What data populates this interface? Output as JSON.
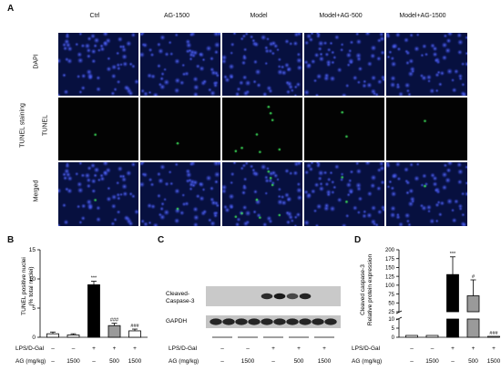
{
  "panelA": {
    "letter": "A",
    "columns": [
      "Ctrl",
      "AG-1500",
      "Model",
      "Model+AG-500",
      "Model+AG-1500"
    ],
    "rows": [
      "DAPI",
      "TUNEL",
      "Merged"
    ],
    "group_label": "TUNEL staining",
    "tunel_spots": [
      1,
      1,
      8,
      2,
      1
    ]
  },
  "panelB": {
    "letter": "B",
    "ylabel_line1": "TUNEL positive nuclei",
    "ylabel_line2": "(% total nuclei)",
    "chart_data": {
      "type": "bar",
      "categories": [
        "Ctrl",
        "AG-1500",
        "Model",
        "Model+AG-500",
        "Model+AG-1500"
      ],
      "values": [
        0.6,
        0.4,
        9.0,
        2.0,
        1.1
      ],
      "errors": [
        0.3,
        0.2,
        0.6,
        0.4,
        0.3
      ],
      "fills": [
        "#ffffff",
        "#ffffff",
        "#000000",
        "#9a9a9a",
        "#ffffff"
      ],
      "significance": [
        "",
        "",
        "***",
        "###",
        "###"
      ],
      "ylim": [
        0,
        15
      ],
      "yticks": [
        0,
        5,
        10,
        15
      ]
    }
  },
  "panelC": {
    "letter": "C",
    "blot1_label_line1": "Cleaved-",
    "blot1_label_line2": "Caspase-3",
    "blot2_label": "GAPDH"
  },
  "panelD": {
    "letter": "D",
    "ylabel_line1": "Cleaved caspase-3",
    "ylabel_line2": "Relative protein expression",
    "chart_data": {
      "type": "bar",
      "categories": [
        "Ctrl",
        "AG-1500",
        "Model",
        "Model+AG-500",
        "Model+AG-1500"
      ],
      "values": [
        1.0,
        1.0,
        130,
        70,
        0.5
      ],
      "errors": [
        0.2,
        0.2,
        50,
        45,
        0.2
      ],
      "fills": [
        "#ffffff",
        "#ffffff",
        "#000000",
        "#9a9a9a",
        "#ffffff"
      ],
      "significance": [
        "",
        "",
        "***",
        "#",
        "###"
      ],
      "y_axis_break": true,
      "lower_ticks": [
        0,
        5,
        10
      ],
      "upper_ticks": [
        25,
        50,
        75,
        100,
        125,
        150,
        175,
        200
      ]
    }
  },
  "treatment_rows": {
    "lps_label": "LPS/D-Gal",
    "ag_label": "AG (mg/kg)",
    "lps_marks": [
      "–",
      "–",
      "+",
      "+",
      "+"
    ],
    "ag_marks": [
      "–",
      "1500",
      "–",
      "500",
      "1500"
    ]
  }
}
